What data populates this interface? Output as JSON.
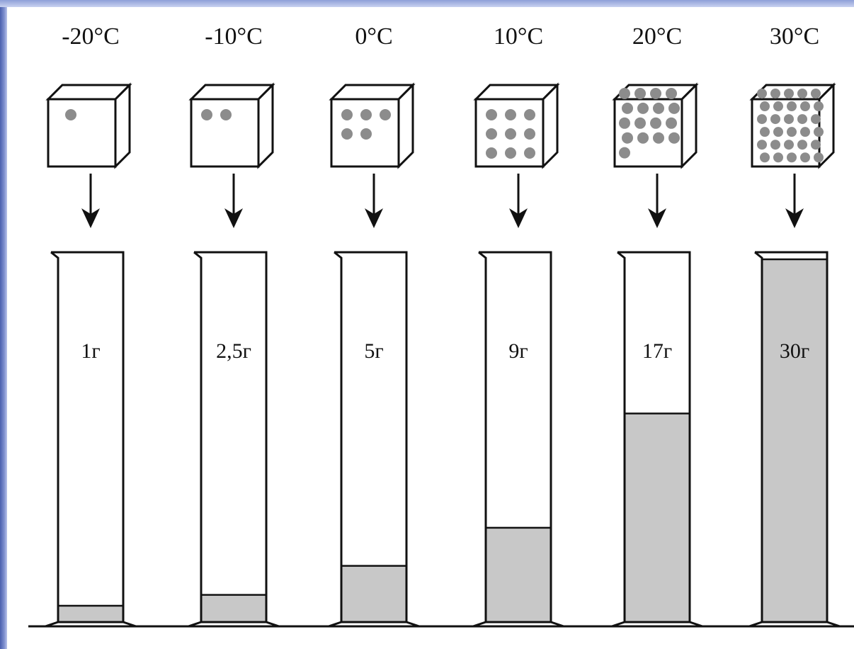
{
  "columns": [
    {
      "temperature": "-20°C",
      "mass_label": "1г",
      "dots": 1,
      "fill_fraction": 0.045
    },
    {
      "temperature": "-10°C",
      "mass_label": "2,5г",
      "dots": 2,
      "fill_fraction": 0.075
    },
    {
      "temperature": "0°C",
      "mass_label": "5г",
      "dots": 5,
      "fill_fraction": 0.155
    },
    {
      "temperature": "10°C",
      "mass_label": "9г",
      "dots": 9,
      "fill_fraction": 0.26
    },
    {
      "temperature": "20°C",
      "mass_label": "17г",
      "dots": 17,
      "fill_fraction": 0.575
    },
    {
      "temperature": "30°C",
      "mass_label": "30г",
      "dots": 30,
      "fill_fraction": 1.0
    }
  ],
  "colors": {
    "fill": "#c8c8c8",
    "dot": "#8c8c8c",
    "stroke": "#111111",
    "background": "#ffffff"
  }
}
